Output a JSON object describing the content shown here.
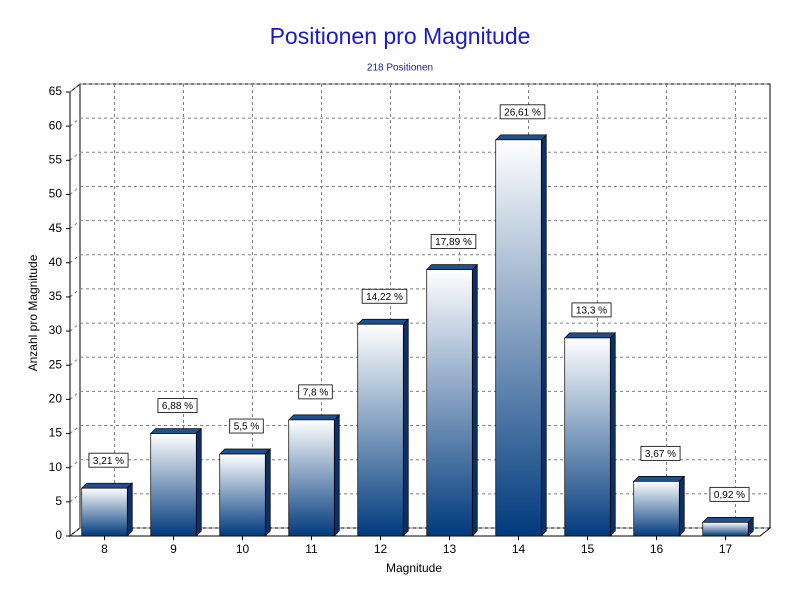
{
  "chart_data": {
    "type": "bar3d",
    "title": "Positionen pro Magnitude",
    "subtitle": "218 Positionen",
    "x_label": "Magnitude",
    "y_label": "Anzahl pro Magnitude",
    "categories": [
      "8",
      "9",
      "10",
      "11",
      "12",
      "13",
      "14",
      "15",
      "16",
      "17"
    ],
    "values": [
      7,
      15,
      12,
      17,
      31,
      39,
      58,
      29,
      8,
      2
    ],
    "shares": [
      3.21,
      6.88,
      5.5,
      7.8,
      14.22,
      17.89,
      26.61,
      13.3,
      3.67,
      0.92
    ],
    "share_labels": [
      "3,21 %",
      "6,88 %",
      "5,5 %",
      "7,8 %",
      "14,22 %",
      "17,89 %",
      "26,61 %",
      "13,3 %",
      "3,67 %",
      "0,92 %"
    ],
    "color": "#003a7d",
    "ylim": [
      0,
      65
    ],
    "yticks": [
      0,
      5,
      10,
      15,
      20,
      25,
      30,
      35,
      40,
      45,
      50,
      55,
      60,
      65
    ],
    "grid": true
  }
}
